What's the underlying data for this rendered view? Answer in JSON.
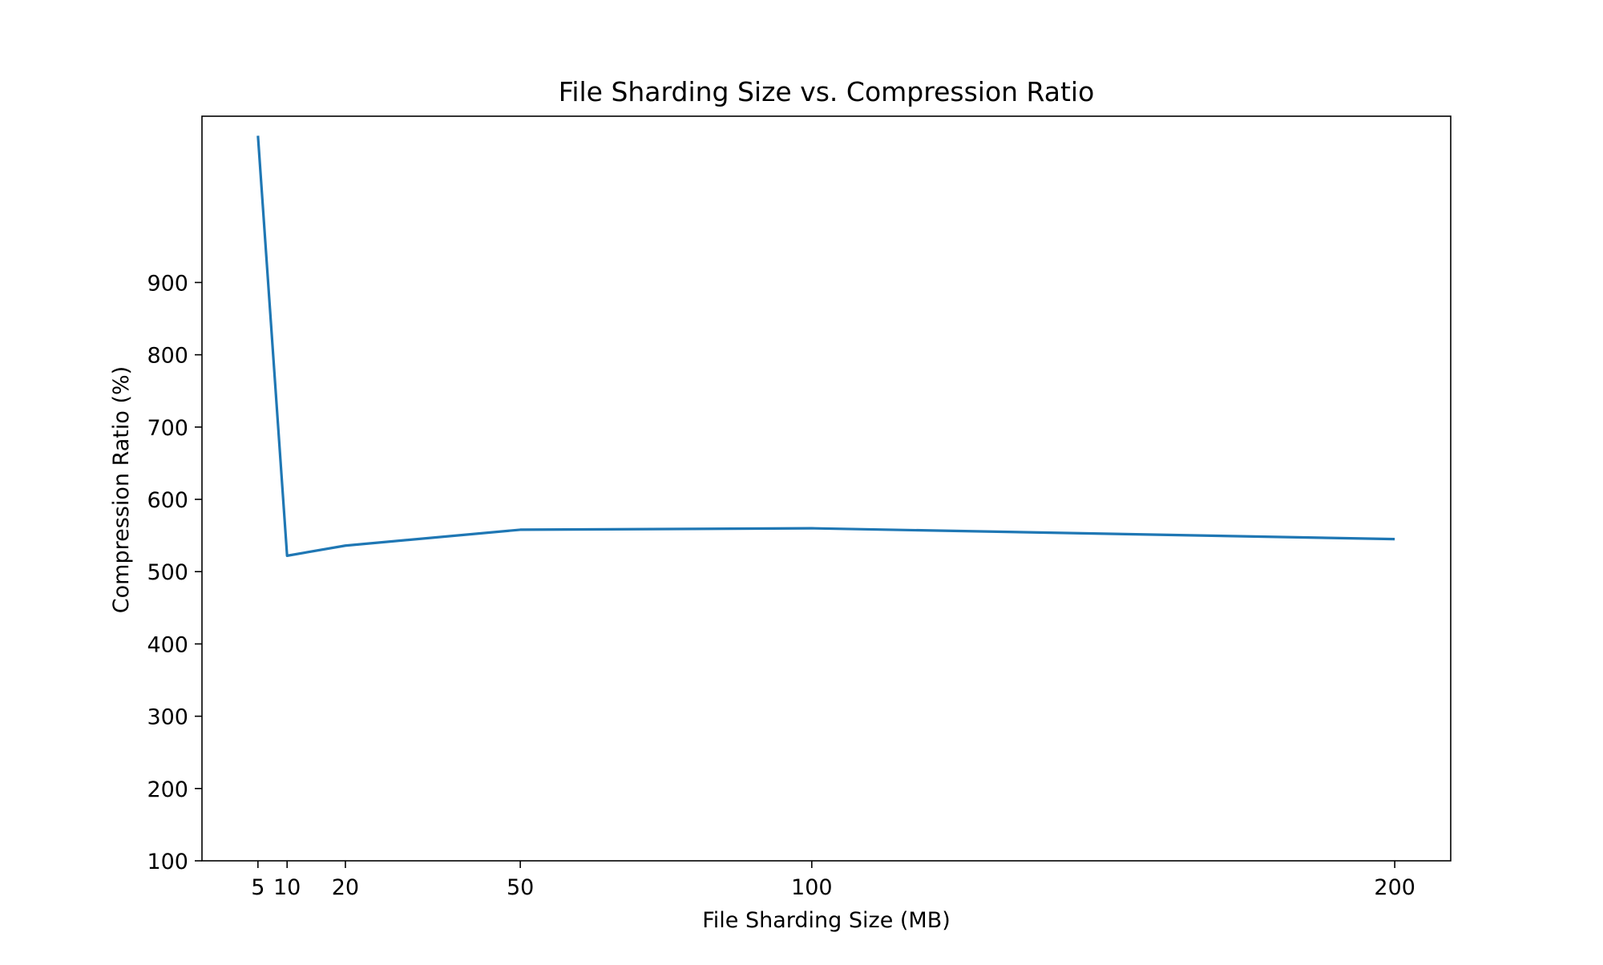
{
  "chart_data": {
    "type": "line",
    "title": "File Sharding Size vs. Compression Ratio",
    "xlabel": "File Sharding Size (MB)",
    "ylabel": "Compression Ratio (%)",
    "x": [
      5,
      10,
      20,
      50,
      100,
      200
    ],
    "x_ticks": [
      5,
      10,
      20,
      50,
      100,
      200
    ],
    "y_ticks": [
      100,
      200,
      300,
      400,
      500,
      600,
      700,
      800,
      900
    ],
    "xlim": [
      -4.6,
      209.6
    ],
    "ylim": [
      100,
      1130
    ],
    "series": [
      {
        "values": [
          1103,
          522,
          536,
          558,
          560,
          545
        ],
        "color": "#1f77b4"
      }
    ],
    "grid": false,
    "legend": "none"
  }
}
